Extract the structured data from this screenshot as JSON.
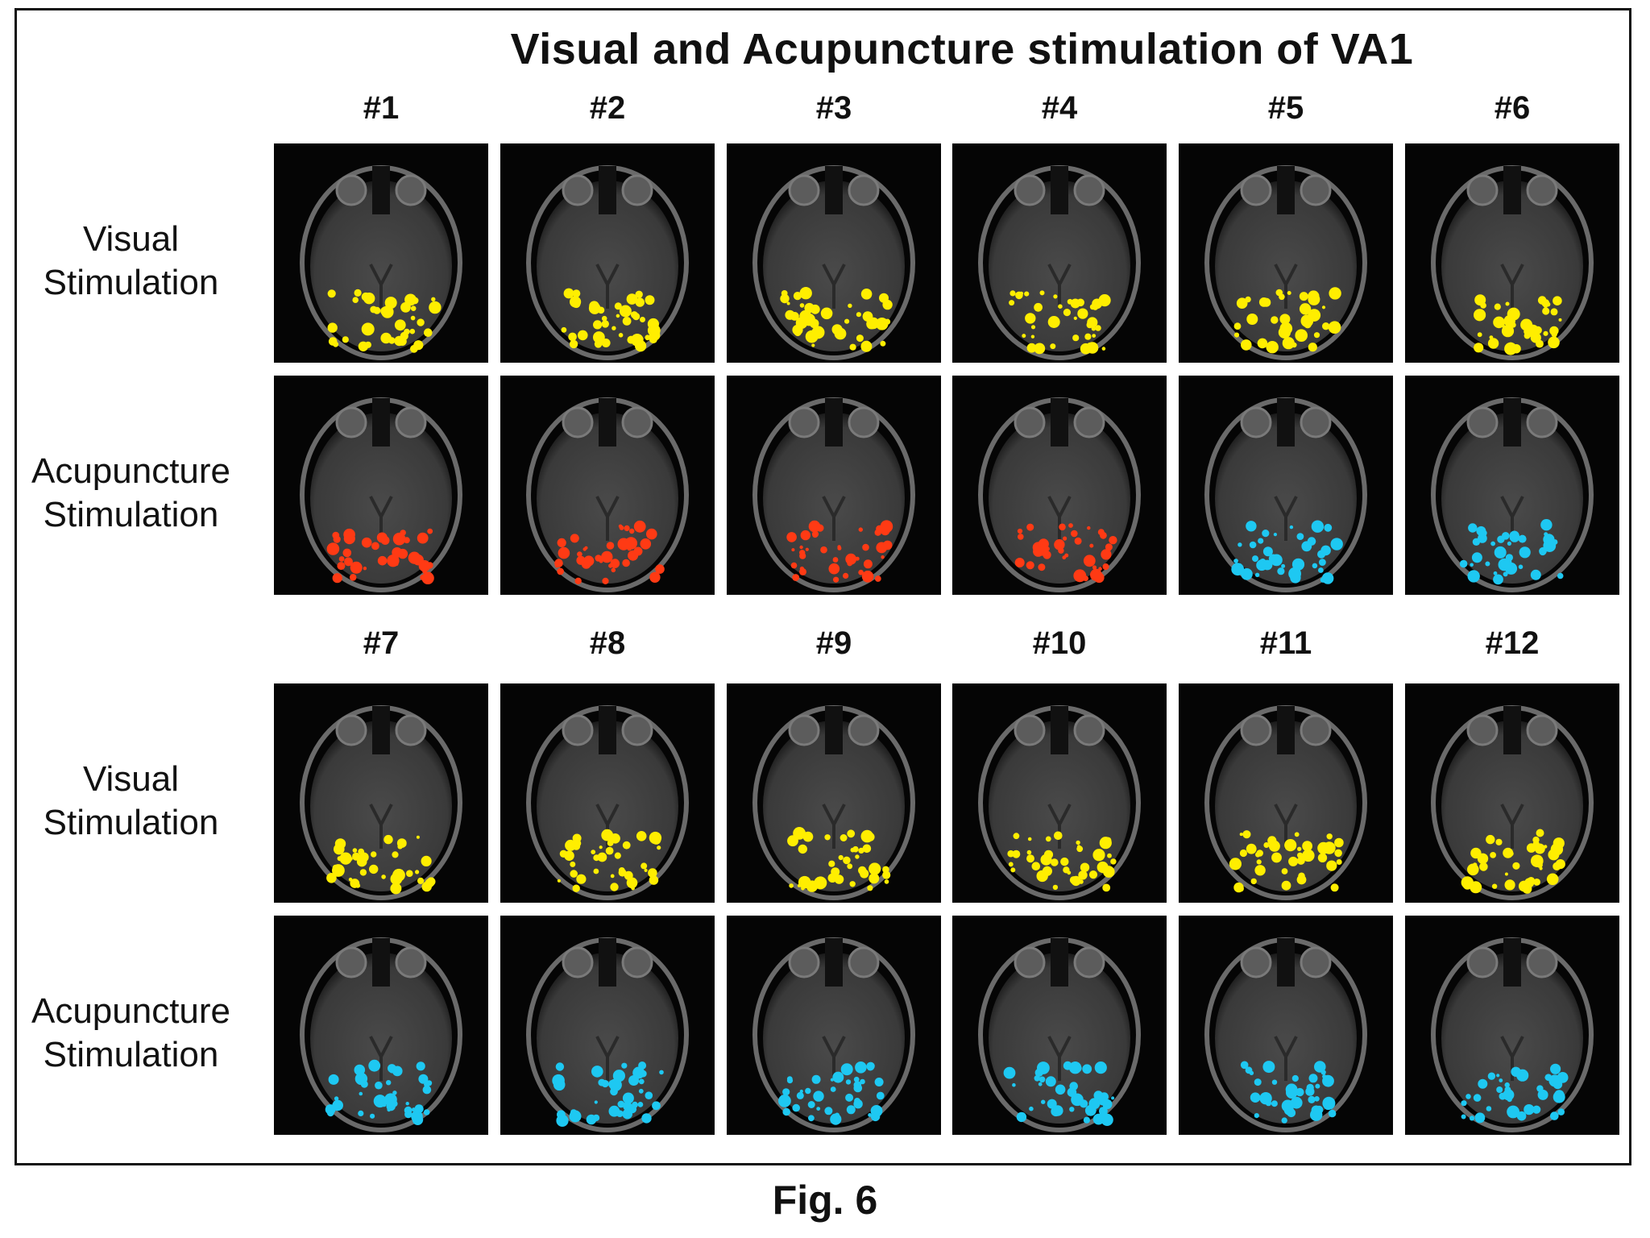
{
  "figure": {
    "title": "Visual and Acupuncture stimulation of VA1",
    "caption": "Fig. 6"
  },
  "rows": {
    "visual": [
      "Visual",
      "Stimulation"
    ],
    "acupuncture": [
      "Acupuncture",
      "Stimulation"
    ]
  },
  "colors": {
    "yellow": "#ffee00",
    "red": "#ff3a14",
    "cyan": "#1ec8f2"
  },
  "panels": [
    {
      "label": "#1",
      "visual_color": "yellow",
      "acupuncture_color": "red"
    },
    {
      "label": "#2",
      "visual_color": "yellow",
      "acupuncture_color": "red"
    },
    {
      "label": "#3",
      "visual_color": "yellow",
      "acupuncture_color": "red"
    },
    {
      "label": "#4",
      "visual_color": "yellow",
      "acupuncture_color": "red"
    },
    {
      "label": "#5",
      "visual_color": "yellow",
      "acupuncture_color": "cyan"
    },
    {
      "label": "#6",
      "visual_color": "yellow",
      "acupuncture_color": "cyan"
    },
    {
      "label": "#7",
      "visual_color": "yellow",
      "acupuncture_color": "cyan"
    },
    {
      "label": "#8",
      "visual_color": "yellow",
      "acupuncture_color": "cyan"
    },
    {
      "label": "#9",
      "visual_color": "yellow",
      "acupuncture_color": "cyan"
    },
    {
      "label": "#10",
      "visual_color": "yellow",
      "acupuncture_color": "cyan"
    },
    {
      "label": "#11",
      "visual_color": "yellow",
      "acupuncture_color": "cyan"
    },
    {
      "label": "#12",
      "visual_color": "yellow",
      "acupuncture_color": "cyan"
    }
  ]
}
